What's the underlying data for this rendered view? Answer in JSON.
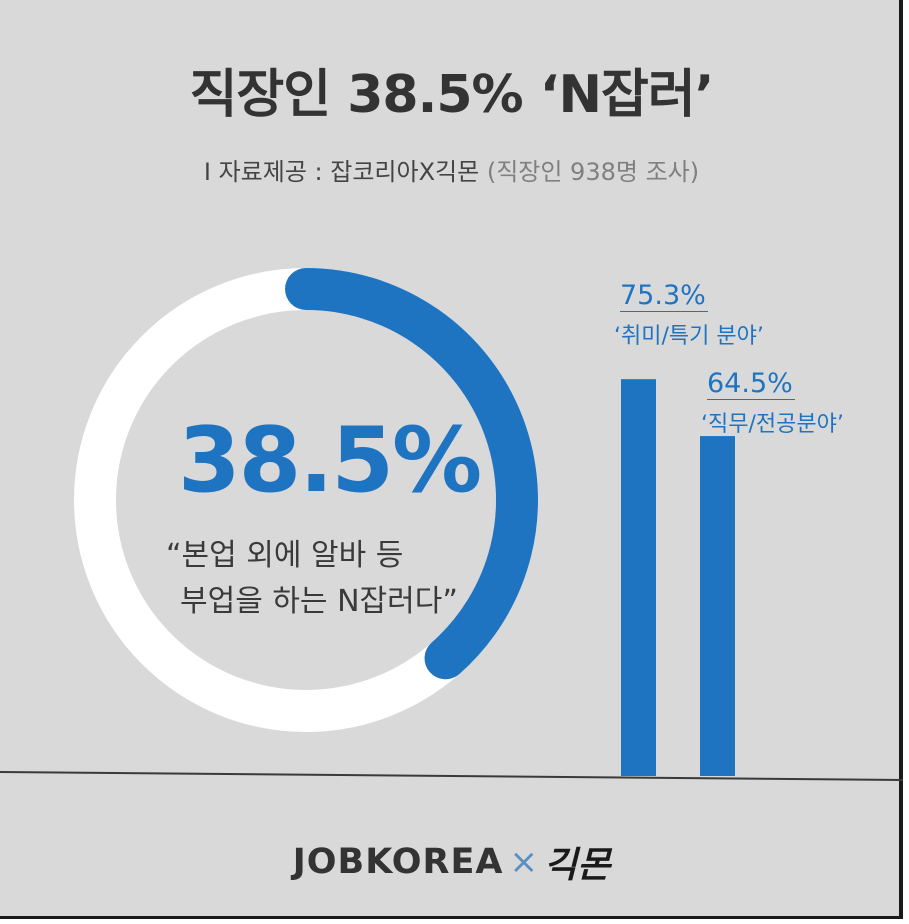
{
  "title": "직장인 38.5% ‘N잡러’",
  "subtitle": {
    "main": "I 자료제공 : 잡코리아X긱몬",
    "muted": "(직장인 938명 조사)"
  },
  "colors": {
    "accent": "#1f74c2",
    "ring_track": "#ffffff",
    "background": "#d9d9d9",
    "text": "#333333"
  },
  "chart_data": [
    {
      "type": "pie",
      "values": [
        38.5,
        61.5
      ],
      "big_label": "38.5%",
      "caption_lines": [
        "“본업 외에 알바 등",
        "부업을 하는 N잡러다”"
      ]
    },
    {
      "type": "bar",
      "categories": [
        "‘취미/특기 분야’",
        "‘직무/전공분야’"
      ],
      "values": [
        75.3,
        64.5
      ],
      "value_labels": [
        "75.3%",
        "64.5%"
      ]
    }
  ],
  "footer": {
    "brand": "JOBKOREA",
    "separator": "×",
    "partner": "긱몬"
  }
}
